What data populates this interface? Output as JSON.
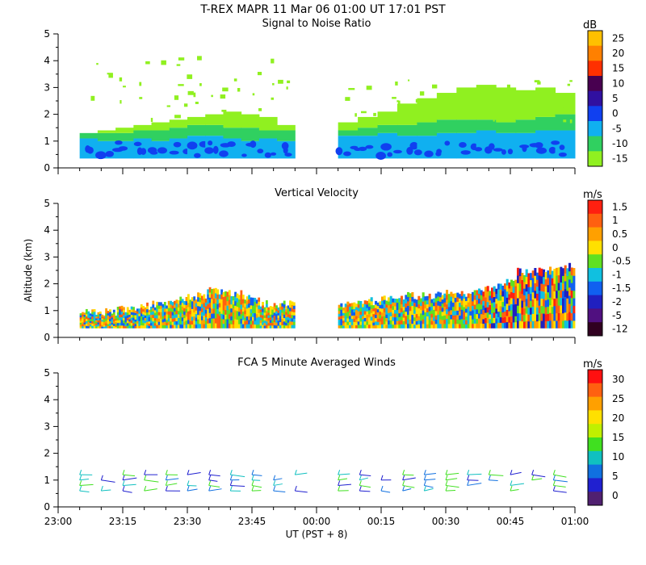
{
  "header": {
    "title": "T-REX   MAPR 11 Mar 06   01:00 UT   17:01   PST"
  },
  "chart_data": [
    {
      "type": "heatmap",
      "title": "Signal to Noise Ratio",
      "unit": "dB",
      "ylabel": "",
      "ylim": [
        0,
        5
      ],
      "y_ticks": [
        "0",
        "1",
        "2",
        "3",
        "4",
        "5"
      ],
      "colorbar_labels": [
        "25",
        "20",
        "15",
        "10",
        "5",
        "0",
        "-5",
        "-10",
        "-15"
      ],
      "colorbar_colors": [
        "#ffc000",
        "#ff8000",
        "#ff3000",
        "#480050",
        "#3010a0",
        "#1040f0",
        "#10b0f0",
        "#30d060",
        "#90f020"
      ],
      "segments": [
        {
          "time_range": [
            "23:05",
            "23:55"
          ],
          "low_tops_km": [
            1.1,
            1.0,
            1.0,
            1.1,
            1.0,
            1.1,
            1.2,
            1.2,
            1.1,
            1.0,
            1.1,
            1.0
          ],
          "mid_tops_km": [
            1.3,
            1.3,
            1.3,
            1.4,
            1.4,
            1.5,
            1.6,
            1.6,
            1.5,
            1.5,
            1.4,
            1.4
          ],
          "top_km": [
            1.3,
            1.4,
            1.5,
            1.6,
            1.7,
            1.8,
            1.9,
            2.0,
            2.1,
            2.0,
            1.9,
            1.6
          ]
        },
        {
          "time_range": [
            "00:05",
            "01:00"
          ],
          "low_tops_km": [
            1.2,
            1.2,
            1.3,
            1.2,
            1.2,
            1.3,
            1.3,
            1.4,
            1.3,
            1.3,
            1.4,
            1.4
          ],
          "mid_tops_km": [
            1.4,
            1.5,
            1.6,
            1.6,
            1.7,
            1.8,
            1.8,
            1.8,
            1.7,
            1.8,
            1.9,
            2.0
          ],
          "top_km": [
            1.7,
            1.9,
            2.1,
            2.4,
            2.6,
            2.8,
            3.0,
            3.1,
            3.0,
            2.9,
            3.0,
            2.8
          ]
        }
      ]
    },
    {
      "type": "heatmap",
      "title": "Vertical Velocity",
      "unit": "m/s",
      "ylabel": "Altitude (km)",
      "ylim": [
        0,
        5
      ],
      "y_ticks": [
        "0",
        "1",
        "2",
        "3",
        "4",
        "5"
      ],
      "colorbar_labels": [
        "1.5",
        "1",
        "0.5",
        "0",
        "-0.5",
        "-1",
        "-1.5",
        "-2",
        "-5",
        "-12"
      ],
      "colorbar_colors": [
        "#ff2010",
        "#ff6010",
        "#ffa000",
        "#ffe000",
        "#60e020",
        "#10c0e0",
        "#1060f0",
        "#2020c0",
        "#501080",
        "#300020"
      ],
      "segments": [
        {
          "time_range": [
            "23:05",
            "23:55"
          ],
          "top_km": [
            1.1,
            1.1,
            1.2,
            1.3,
            1.4,
            1.6,
            1.7,
            1.9,
            1.8,
            1.6,
            1.4,
            1.4
          ]
        },
        {
          "time_range": [
            "00:05",
            "01:00"
          ],
          "top_km": [
            1.4,
            1.5,
            1.6,
            1.7,
            1.7,
            1.8,
            1.8,
            2.0,
            2.2,
            2.6,
            2.7,
            2.8
          ]
        }
      ]
    },
    {
      "type": "scatter",
      "title": "FCA 5 Minute Averaged Winds",
      "unit": "m/s",
      "ylabel": "",
      "ylim": [
        0,
        5
      ],
      "y_ticks": [
        "0",
        "1",
        "2",
        "3",
        "4",
        "5"
      ],
      "colorbar_labels": [
        "30",
        "25",
        "20",
        "15",
        "10",
        "5",
        "0"
      ],
      "colorbar_colors": [
        "#ff1010",
        "#ff6010",
        "#ffa000",
        "#ffe000",
        "#c0f000",
        "#40e020",
        "#10c0c0",
        "#1070e0",
        "#2020d0",
        "#502070"
      ],
      "barb_times": [
        "23:05",
        "23:10",
        "23:15",
        "23:20",
        "23:25",
        "23:30",
        "23:35",
        "23:40",
        "23:45",
        "23:50",
        "23:55",
        "00:05",
        "00:10",
        "00:15",
        "00:20",
        "00:25",
        "00:30",
        "00:35",
        "00:40",
        "00:45",
        "00:50",
        "00:55"
      ],
      "barb_levels_km": [
        0.6,
        0.8,
        1.0,
        1.2
      ]
    }
  ],
  "x_axis": {
    "ticks": [
      "23:00",
      "23:15",
      "23:30",
      "23:45",
      "00:00",
      "00:15",
      "00:30",
      "00:45",
      "01:00"
    ],
    "xlabel": "UT  (PST + 8)"
  }
}
